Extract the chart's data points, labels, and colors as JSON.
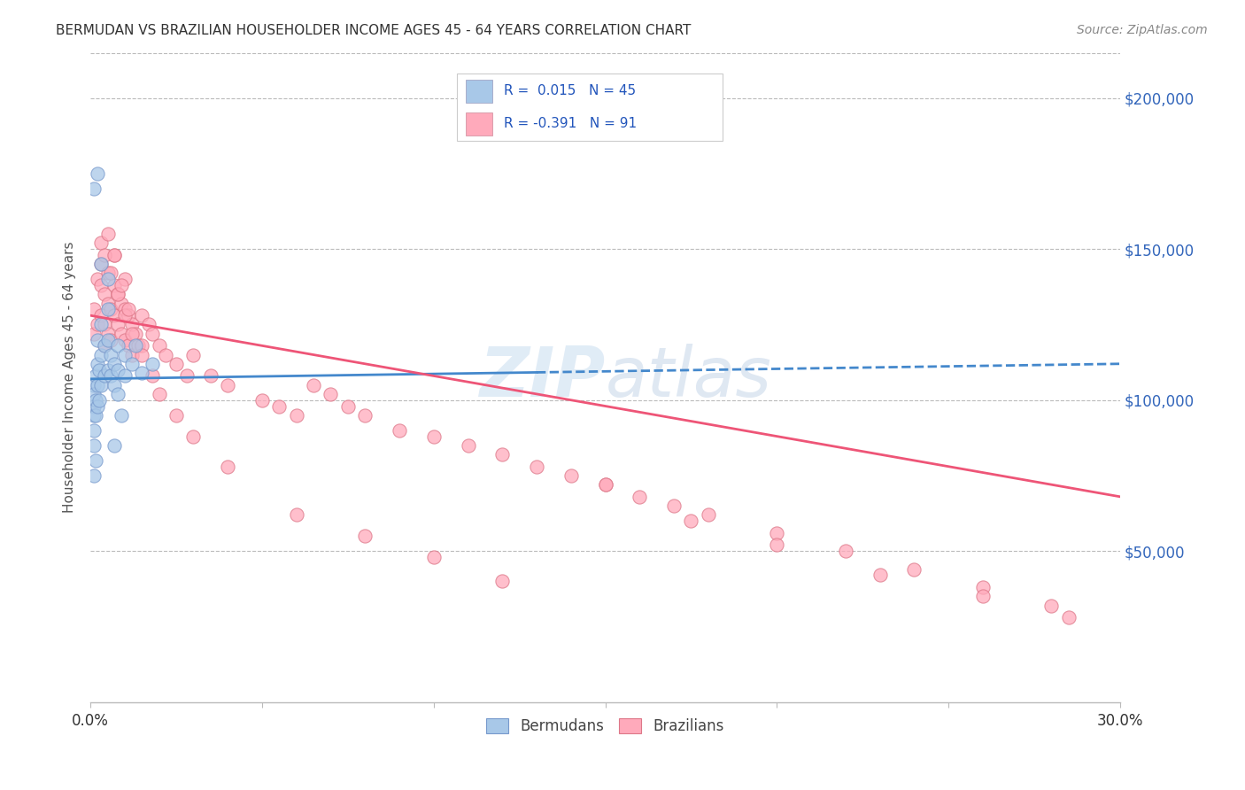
{
  "title": "BERMUDAN VS BRAZILIAN HOUSEHOLDER INCOME AGES 45 - 64 YEARS CORRELATION CHART",
  "source": "Source: ZipAtlas.com",
  "ylabel": "Householder Income Ages 45 - 64 years",
  "ytick_labels": [
    "$50,000",
    "$100,000",
    "$150,000",
    "$200,000"
  ],
  "ytick_values": [
    50000,
    100000,
    150000,
    200000
  ],
  "ylim": [
    0,
    215000
  ],
  "xlim": [
    0.0,
    0.3
  ],
  "watermark": "ZIPatlas",
  "bermudan_scatter_color": "#a8c8e8",
  "brazilian_scatter_color": "#ffaabb",
  "trend_blue": "#4488cc",
  "trend_pink": "#ee5577",
  "bermudan_points_x": [
    0.001,
    0.001,
    0.001,
    0.001,
    0.001,
    0.001,
    0.0015,
    0.0015,
    0.0015,
    0.002,
    0.002,
    0.002,
    0.002,
    0.0025,
    0.0025,
    0.003,
    0.003,
    0.003,
    0.004,
    0.004,
    0.005,
    0.005,
    0.005,
    0.006,
    0.006,
    0.007,
    0.007,
    0.008,
    0.008,
    0.008,
    0.01,
    0.01,
    0.012,
    0.013,
    0.001,
    0.002,
    0.015,
    0.018,
    0.001,
    0.0015,
    0.003,
    0.005,
    0.009,
    0.007
  ],
  "bermudan_points_y": [
    105000,
    102000,
    98000,
    95000,
    90000,
    85000,
    108000,
    100000,
    95000,
    120000,
    112000,
    105000,
    98000,
    110000,
    100000,
    125000,
    115000,
    105000,
    118000,
    108000,
    130000,
    120000,
    110000,
    115000,
    108000,
    112000,
    105000,
    118000,
    110000,
    102000,
    115000,
    108000,
    112000,
    118000,
    170000,
    175000,
    109000,
    112000,
    75000,
    80000,
    145000,
    140000,
    95000,
    85000
  ],
  "brazilian_points_x": [
    0.001,
    0.001,
    0.002,
    0.002,
    0.003,
    0.003,
    0.003,
    0.004,
    0.004,
    0.004,
    0.005,
    0.005,
    0.005,
    0.006,
    0.006,
    0.007,
    0.007,
    0.007,
    0.008,
    0.008,
    0.009,
    0.009,
    0.01,
    0.01,
    0.01,
    0.011,
    0.011,
    0.012,
    0.012,
    0.013,
    0.014,
    0.015,
    0.015,
    0.017,
    0.018,
    0.02,
    0.022,
    0.025,
    0.028,
    0.03,
    0.035,
    0.04,
    0.05,
    0.055,
    0.06,
    0.065,
    0.07,
    0.075,
    0.08,
    0.09,
    0.1,
    0.11,
    0.12,
    0.13,
    0.14,
    0.15,
    0.16,
    0.17,
    0.18,
    0.2,
    0.22,
    0.24,
    0.26,
    0.28,
    0.003,
    0.004,
    0.006,
    0.008,
    0.01,
    0.012,
    0.015,
    0.018,
    0.02,
    0.025,
    0.03,
    0.04,
    0.06,
    0.08,
    0.1,
    0.12,
    0.15,
    0.175,
    0.2,
    0.23,
    0.26,
    0.285,
    0.005,
    0.007,
    0.009,
    0.011
  ],
  "brazilian_points_y": [
    130000,
    122000,
    140000,
    125000,
    145000,
    138000,
    128000,
    135000,
    125000,
    118000,
    142000,
    132000,
    122000,
    130000,
    120000,
    148000,
    138000,
    128000,
    135000,
    125000,
    132000,
    122000,
    140000,
    130000,
    120000,
    128000,
    118000,
    125000,
    115000,
    122000,
    118000,
    128000,
    118000,
    125000,
    122000,
    118000,
    115000,
    112000,
    108000,
    115000,
    108000,
    105000,
    100000,
    98000,
    95000,
    105000,
    102000,
    98000,
    95000,
    90000,
    88000,
    85000,
    82000,
    78000,
    75000,
    72000,
    68000,
    65000,
    62000,
    56000,
    50000,
    44000,
    38000,
    32000,
    152000,
    148000,
    142000,
    135000,
    128000,
    122000,
    115000,
    108000,
    102000,
    95000,
    88000,
    78000,
    62000,
    55000,
    48000,
    40000,
    72000,
    60000,
    52000,
    42000,
    35000,
    28000,
    155000,
    148000,
    138000,
    130000
  ]
}
